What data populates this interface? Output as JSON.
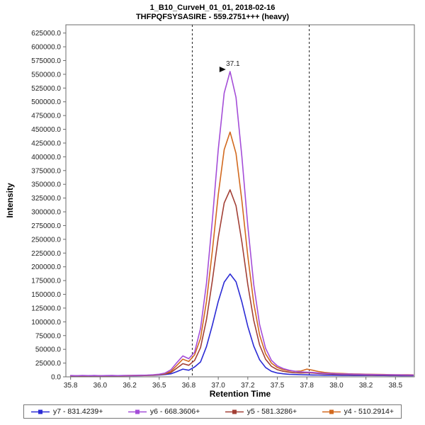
{
  "chart_data": {
    "type": "line",
    "title": "1_B10_CurveH_01_01, 2018-02-16",
    "subtitle": "THFPQFSYSASIRE - 559.2751+++ (heavy)",
    "xlabel": "Retention Time",
    "ylabel": "Intensity",
    "xlim": [
      35.71,
      38.66
    ],
    "ylim": [
      0,
      640000
    ],
    "legend_position": "bottom",
    "grid": false,
    "xticks": [
      {
        "v": 35.75,
        "label": "35.8"
      },
      {
        "v": 36.0,
        "label": "36.0"
      },
      {
        "v": 36.25,
        "label": "36.2"
      },
      {
        "v": 36.5,
        "label": "36.5"
      },
      {
        "v": 36.75,
        "label": "36.8"
      },
      {
        "v": 37.0,
        "label": "37.0"
      },
      {
        "v": 37.25,
        "label": "37.2"
      },
      {
        "v": 37.5,
        "label": "37.5"
      },
      {
        "v": 37.75,
        "label": "37.8"
      },
      {
        "v": 38.0,
        "label": "38.0"
      },
      {
        "v": 38.25,
        "label": "38.2"
      },
      {
        "v": 38.5,
        "label": "38.5"
      }
    ],
    "yticks": [
      0,
      25000,
      50000,
      75000,
      100000,
      125000,
      150000,
      175000,
      200000,
      225000,
      250000,
      275000,
      300000,
      325000,
      350000,
      375000,
      400000,
      425000,
      450000,
      475000,
      500000,
      525000,
      550000,
      575000,
      600000,
      625000
    ],
    "integration_boundaries": [
      36.78,
      37.77
    ],
    "peak_annotation": {
      "text": "37.1",
      "x": 37.1,
      "y": 555000,
      "color": "#a44dd8",
      "arrow_color": "#111111"
    },
    "x": [
      35.75,
      35.8,
      35.85,
      35.9,
      35.95,
      36.0,
      36.05,
      36.1,
      36.15,
      36.2,
      36.25,
      36.3,
      36.35,
      36.4,
      36.45,
      36.5,
      36.55,
      36.6,
      36.65,
      36.7,
      36.75,
      36.8,
      36.85,
      36.9,
      36.95,
      37.0,
      37.05,
      37.1,
      37.15,
      37.2,
      37.25,
      37.3,
      37.35,
      37.4,
      37.45,
      37.5,
      37.55,
      37.6,
      37.65,
      37.7,
      37.75,
      37.8,
      37.85,
      37.9,
      37.95,
      38.0,
      38.05,
      38.1,
      38.15,
      38.2,
      38.25,
      38.3,
      38.35,
      38.4,
      38.45,
      38.5,
      38.55,
      38.6,
      38.65
    ],
    "series": [
      {
        "name": "y7 - 831.4239+",
        "color": "#2b2bd5",
        "values": [
          1800,
          1600,
          1800,
          1700,
          1900,
          1700,
          1800,
          1900,
          1800,
          1900,
          2000,
          2100,
          2200,
          2400,
          2700,
          3200,
          4200,
          5500,
          9500,
          14000,
          12000,
          18000,
          27000,
          55000,
          94000,
          137000,
          172000,
          187000,
          173000,
          136000,
          92000,
          56000,
          31000,
          17000,
          10000,
          7000,
          5500,
          4700,
          4200,
          3800,
          3600,
          3400,
          3200,
          3000,
          2900,
          2800,
          2700,
          2600,
          2500,
          2500,
          2400,
          2400,
          2300,
          2300,
          2200,
          2200,
          2100,
          2100,
          2100
        ]
      },
      {
        "name": "y6 - 668.3606+",
        "color": "#a44dd8",
        "values": [
          2500,
          2000,
          2500,
          2200,
          2400,
          2100,
          2300,
          2500,
          2200,
          2400,
          2600,
          2800,
          3000,
          3200,
          3800,
          4800,
          7000,
          13000,
          26000,
          38000,
          33000,
          45000,
          88000,
          170000,
          285000,
          413000,
          516000,
          555000,
          508000,
          400000,
          275000,
          168000,
          95000,
          52000,
          30000,
          20000,
          15000,
          12000,
          10000,
          9000,
          8500,
          8000,
          7000,
          6500,
          6000,
          5500,
          5200,
          5000,
          4800,
          4600,
          4400,
          4200,
          4000,
          3800,
          3700,
          3600,
          3500,
          3400,
          3400
        ]
      },
      {
        "name": "y5 - 581.3286+",
        "color": "#a23f35",
        "values": [
          2000,
          1800,
          2000,
          1900,
          2100,
          1900,
          2000,
          2100,
          2000,
          2100,
          2200,
          2300,
          2500,
          2700,
          3100,
          3800,
          5200,
          8000,
          16000,
          24000,
          21000,
          30000,
          53000,
          104000,
          175000,
          253000,
          316000,
          340000,
          311000,
          245000,
          168000,
          103000,
          58000,
          32000,
          19000,
          13000,
          10000,
          8500,
          7500,
          7000,
          7500,
          7000,
          6000,
          5500,
          5000,
          4700,
          4400,
          4200,
          4000,
          3800,
          3600,
          3400,
          3300,
          3200,
          3100,
          3000,
          2900,
          2800,
          2800
        ]
      },
      {
        "name": "y4 - 510.2914+",
        "color": "#d2691e",
        "values": [
          2200,
          1900,
          2100,
          2000,
          2200,
          2000,
          2100,
          2300,
          2100,
          2200,
          2400,
          2500,
          2700,
          2900,
          3400,
          4200,
          6000,
          10000,
          21000,
          32000,
          28000,
          40000,
          70000,
          137000,
          229000,
          331000,
          413000,
          445000,
          406000,
          320000,
          220000,
          134000,
          76000,
          42000,
          25000,
          17000,
          13000,
          11000,
          10000,
          10500,
          14000,
          12000,
          9500,
          8000,
          7000,
          6500,
          6000,
          5600,
          5300,
          5000,
          4800,
          4600,
          4400,
          4200,
          4000,
          3900,
          3800,
          3700,
          3600
        ]
      }
    ]
  }
}
